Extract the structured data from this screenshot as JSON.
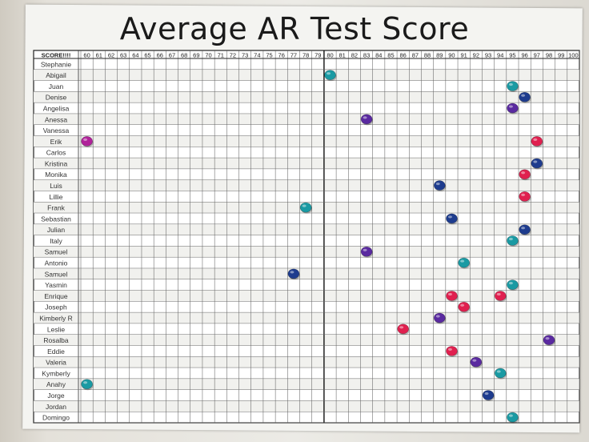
{
  "chart_data": {
    "type": "scatter",
    "title": "Average AR Test Score",
    "header_label": "SCORE!!!!",
    "x_ticks": [
      60,
      61,
      62,
      63,
      64,
      65,
      66,
      67,
      68,
      69,
      70,
      71,
      72,
      73,
      74,
      75,
      76,
      77,
      78,
      79,
      80,
      81,
      82,
      83,
      84,
      85,
      86,
      87,
      88,
      89,
      90,
      91,
      92,
      93,
      94,
      95,
      96,
      97,
      98,
      99,
      100
    ],
    "xlim": [
      60,
      100
    ],
    "grid": true,
    "rows": [
      "Stephanie",
      "Abigail",
      "Juan",
      "Denise",
      "Angelisa",
      "Anessa",
      "Vanessa",
      "Erik",
      "Carlos",
      "Kristina",
      "Monika",
      "Luis",
      "Lillie",
      "Frank",
      "Sebastian",
      "Julian",
      "Italy",
      "Samuel",
      "Antonio",
      "Samuel",
      "Yasmin",
      "Enrique",
      "Joseph",
      "Kimberly R",
      "Leslie",
      "Rosalba",
      "Eddie",
      "Valeria",
      "Kymberly",
      "Anahy",
      "Jorge",
      "Jordan",
      "Domingo"
    ],
    "colors": {
      "teal": "#1a9aa3",
      "navy": "#1e3c8e",
      "purple": "#5a2aa0",
      "magenta": "#b0229a",
      "pink": "#e0204f"
    },
    "points": [
      {
        "row": "Abigail",
        "score": 80,
        "color": "teal"
      },
      {
        "row": "Juan",
        "score": 95,
        "color": "teal"
      },
      {
        "row": "Denise",
        "score": 96,
        "color": "navy"
      },
      {
        "row": "Angelisa",
        "score": 95,
        "color": "purple"
      },
      {
        "row": "Anessa",
        "score": 83,
        "color": "purple"
      },
      {
        "row": "Erik",
        "score": 60,
        "color": "magenta"
      },
      {
        "row": "Erik",
        "score": 97,
        "color": "pink"
      },
      {
        "row": "Kristina",
        "score": 97,
        "color": "navy"
      },
      {
        "row": "Monika",
        "score": 96,
        "color": "pink"
      },
      {
        "row": "Luis",
        "score": 89,
        "color": "navy"
      },
      {
        "row": "Lillie",
        "score": 96,
        "color": "pink"
      },
      {
        "row": "Frank",
        "score": 78,
        "color": "teal"
      },
      {
        "row": "Sebastian",
        "score": 90,
        "color": "navy"
      },
      {
        "row": "Julian",
        "score": 96,
        "color": "navy"
      },
      {
        "row": "Italy",
        "score": 95,
        "color": "teal"
      },
      {
        "row": "Samuel",
        "score": 83,
        "color": "purple"
      },
      {
        "row": "Antonio",
        "score": 91,
        "color": "teal"
      },
      {
        "row": "Samuel",
        "score": 77,
        "color": "navy"
      },
      {
        "row": "Yasmin",
        "score": 95,
        "color": "teal"
      },
      {
        "row": "Enrique",
        "score": 90,
        "color": "pink"
      },
      {
        "row": "Enrique",
        "score": 94,
        "color": "pink"
      },
      {
        "row": "Joseph",
        "score": 91,
        "color": "pink"
      },
      {
        "row": "Kimberly R",
        "score": 89,
        "color": "purple"
      },
      {
        "row": "Leslie",
        "score": 86,
        "color": "pink"
      },
      {
        "row": "Rosalba",
        "score": 98,
        "color": "purple"
      },
      {
        "row": "Eddie",
        "score": 90,
        "color": "pink"
      },
      {
        "row": "Valeria",
        "score": 92,
        "color": "purple"
      },
      {
        "row": "Kymberly",
        "score": 94,
        "color": "teal"
      },
      {
        "row": "Anahy",
        "score": 60,
        "color": "teal"
      },
      {
        "row": "Jorge",
        "score": 93,
        "color": "navy"
      },
      {
        "row": "Domingo",
        "score": 95,
        "color": "teal"
      }
    ]
  }
}
